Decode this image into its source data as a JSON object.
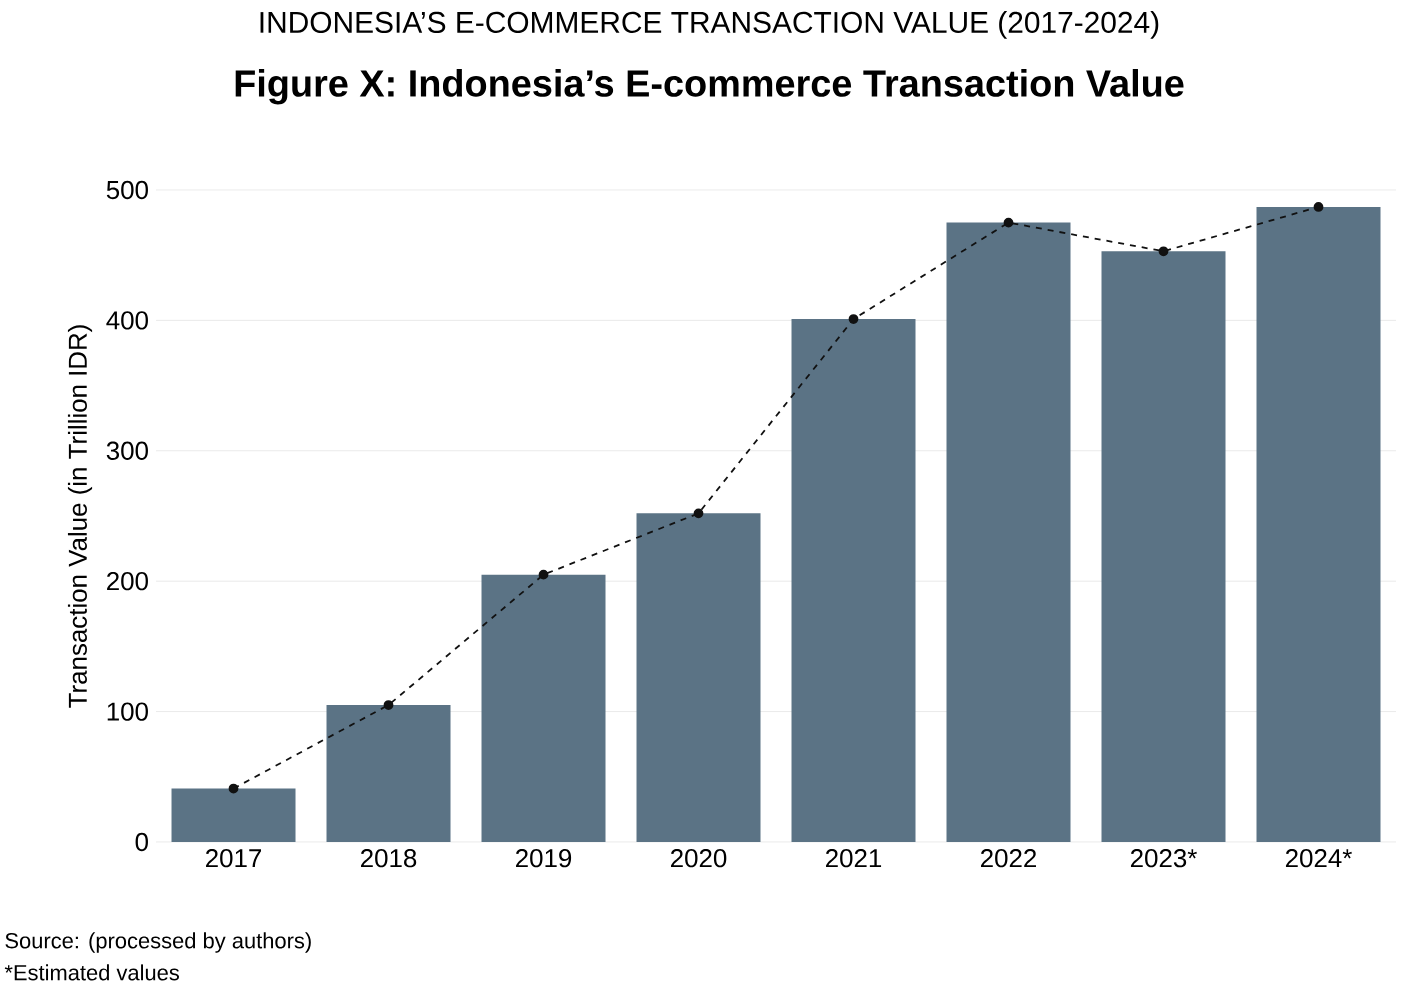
{
  "chart_data": {
    "type": "bar",
    "title": "INDONESIA’S E-COMMERCE TRANSACTION VALUE (2017-2024)",
    "subtitle": "Figure X: Indonesia’s E-commerce Transaction Value",
    "ylabel": "Transaction Value (in Trillion IDR)",
    "categories": [
      "2017",
      "2018",
      "2019",
      "2020",
      "2021",
      "2022",
      "2023*",
      "2024*"
    ],
    "series": [
      {
        "color": "#5b7385",
        "values": [
          41,
          105,
          205,
          252,
          401,
          475,
          453,
          487
        ]
      },
      {
        "type": "line",
        "color": "#111111",
        "values": [
          41,
          105,
          205,
          252,
          401,
          475,
          453,
          487
        ]
      }
    ],
    "ylim": [
      0,
      500
    ],
    "yticks": [
      0,
      100,
      200,
      300,
      400,
      500
    ],
    "grid": "y",
    "marker": "circle",
    "line_style": "dashed",
    "annotations": [
      "Source: (processed by authors)",
      "*Estimated values"
    ]
  }
}
